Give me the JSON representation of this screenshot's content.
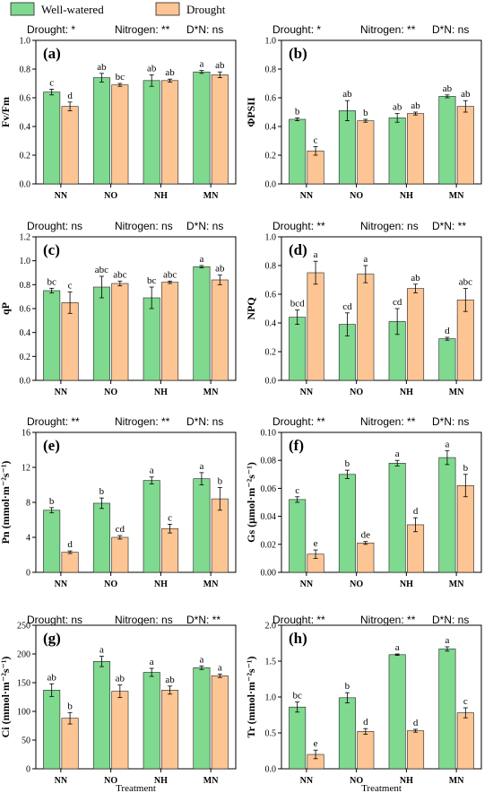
{
  "legend": {
    "items": [
      {
        "label": "Well-watered",
        "color": "#7fd98f"
      },
      {
        "label": "Drought",
        "color": "#fcc593"
      }
    ]
  },
  "colors": {
    "well_watered": "#7fd98f",
    "drought": "#fcc593",
    "edge": "#222222"
  },
  "chart_data": [
    {
      "type": "bar",
      "panel_label": "(a)",
      "ylabel": "Fv/Fm",
      "xlabel": "",
      "stats": [
        "Drought: *",
        "Nitrogen: **",
        "D*N: ns"
      ],
      "categories": [
        "NN",
        "NO",
        "NH",
        "MN"
      ],
      "ylim": [
        0,
        1.0
      ],
      "yticks": [
        "0.0",
        "0.2",
        "0.4",
        "0.6",
        "0.8",
        "1.0"
      ],
      "series": [
        {
          "name": "Well-watered",
          "values": [
            0.64,
            0.74,
            0.72,
            0.78
          ],
          "errors": [
            0.02,
            0.03,
            0.04,
            0.01
          ],
          "letters": [
            "c",
            "ab",
            "ab",
            "a"
          ]
        },
        {
          "name": "Drought",
          "values": [
            0.54,
            0.69,
            0.72,
            0.76
          ],
          "errors": [
            0.03,
            0.01,
            0.01,
            0.02
          ],
          "letters": [
            "d",
            "bc",
            "ab",
            "ab"
          ]
        }
      ]
    },
    {
      "type": "bar",
      "panel_label": "(b)",
      "ylabel": "ΦPSII",
      "xlabel": "",
      "stats": [
        "Drought: *",
        "Nitrogen: **",
        "D*N: ns"
      ],
      "categories": [
        "NN",
        "NO",
        "NH",
        "MN"
      ],
      "ylim": [
        0,
        1.0
      ],
      "yticks": [
        "0.0",
        "0.2",
        "0.4",
        "0.6",
        "0.8",
        "1.0"
      ],
      "series": [
        {
          "name": "Well-watered",
          "values": [
            0.45,
            0.51,
            0.46,
            0.61
          ],
          "errors": [
            0.01,
            0.07,
            0.03,
            0.01
          ],
          "letters": [
            "b",
            "ab",
            "ab",
            "ab"
          ]
        },
        {
          "name": "Drought",
          "values": [
            0.23,
            0.44,
            0.49,
            0.54
          ],
          "errors": [
            0.03,
            0.01,
            0.01,
            0.04
          ],
          "letters": [
            "c",
            "b",
            "ab",
            "ab"
          ]
        }
      ]
    },
    {
      "type": "bar",
      "panel_label": "(c)",
      "ylabel": "qP",
      "xlabel": "",
      "stats": [
        "Drought: ns",
        "Nitrogen: ns",
        "D*N: ns"
      ],
      "categories": [
        "NN",
        "NO",
        "NH",
        "MN"
      ],
      "ylim": [
        0,
        1.2
      ],
      "yticks": [
        "0.0",
        "0.2",
        "0.4",
        "0.6",
        "0.8",
        "1.0",
        "1.2"
      ],
      "series": [
        {
          "name": "Well-watered",
          "values": [
            0.75,
            0.78,
            0.69,
            0.95
          ],
          "errors": [
            0.02,
            0.09,
            0.09,
            0.01
          ],
          "letters": [
            "bc",
            "abc",
            "bc",
            "a"
          ]
        },
        {
          "name": "Drought",
          "values": [
            0.65,
            0.81,
            0.82,
            0.84
          ],
          "errors": [
            0.09,
            0.02,
            0.01,
            0.04
          ],
          "letters": [
            "c",
            "abc",
            "abc",
            "ab"
          ]
        }
      ]
    },
    {
      "type": "bar",
      "panel_label": "(d)",
      "ylabel": "NPQ",
      "xlabel": "",
      "stats": [
        "Drought: **",
        "Nitrogen: ns",
        "D*N: **"
      ],
      "categories": [
        "NN",
        "NO",
        "NH",
        "MN"
      ],
      "ylim": [
        0,
        1.0
      ],
      "yticks": [
        "0.0",
        "0.2",
        "0.4",
        "0.6",
        "0.8",
        "1.0"
      ],
      "series": [
        {
          "name": "Well-watered",
          "values": [
            0.44,
            0.39,
            0.41,
            0.29
          ],
          "errors": [
            0.05,
            0.08,
            0.09,
            0.01
          ],
          "letters": [
            "bcd",
            "cd",
            "cd",
            "d"
          ]
        },
        {
          "name": "Drought",
          "values": [
            0.75,
            0.74,
            0.64,
            0.56
          ],
          "errors": [
            0.08,
            0.06,
            0.03,
            0.08
          ],
          "letters": [
            "a",
            "a",
            "ab",
            "abc"
          ]
        }
      ]
    },
    {
      "type": "bar",
      "panel_label": "(e)",
      "ylabel": "Pn (mmol·m⁻²s⁻¹)",
      "xlabel": "",
      "stats": [
        "Drought: **",
        "Nitrogen: **",
        "D*N: ns"
      ],
      "categories": [
        "NN",
        "NO",
        "NH",
        "MN"
      ],
      "ylim": [
        0,
        16
      ],
      "yticks": [
        "0",
        "4",
        "8",
        "12",
        "16"
      ],
      "series": [
        {
          "name": "Well-watered",
          "values": [
            7.1,
            7.9,
            10.5,
            10.7
          ],
          "errors": [
            0.3,
            0.6,
            0.4,
            0.7
          ],
          "letters": [
            "b",
            "b",
            "a",
            "a"
          ]
        },
        {
          "name": "Drought",
          "values": [
            2.3,
            4.0,
            5.0,
            8.4
          ],
          "errors": [
            0.15,
            0.2,
            0.5,
            1.3
          ],
          "letters": [
            "d",
            "cd",
            "c",
            "b"
          ]
        }
      ]
    },
    {
      "type": "bar",
      "panel_label": "(f)",
      "ylabel": "Gs (μmol·m⁻²s⁻¹)",
      "xlabel": "",
      "stats": [
        "Drought: **",
        "Nitrogen: **",
        "D*N: ns"
      ],
      "categories": [
        "NN",
        "NO",
        "NH",
        "MN"
      ],
      "ylim": [
        0,
        0.1
      ],
      "yticks": [
        "0.00",
        "0.02",
        "0.04",
        "0.06",
        "0.08",
        "0.10"
      ],
      "series": [
        {
          "name": "Well-watered",
          "values": [
            0.052,
            0.07,
            0.078,
            0.082
          ],
          "errors": [
            0.002,
            0.003,
            0.002,
            0.005
          ],
          "letters": [
            "c",
            "b",
            "a",
            "a"
          ]
        },
        {
          "name": "Drought",
          "values": [
            0.013,
            0.021,
            0.034,
            0.062
          ],
          "errors": [
            0.003,
            0.001,
            0.005,
            0.008
          ],
          "letters": [
            "e",
            "de",
            "d",
            "b"
          ]
        }
      ]
    },
    {
      "type": "bar",
      "panel_label": "(g)",
      "ylabel": "Ci (mmol·m⁻²s⁻¹)",
      "xlabel": "Treatment",
      "stats": [
        "Drought: ns",
        "Nitrogen: ns",
        "D*N: **"
      ],
      "categories": [
        "NN",
        "NO",
        "NH",
        "MN"
      ],
      "ylim": [
        0,
        250
      ],
      "yticks": [
        "0",
        "50",
        "100",
        "150",
        "200",
        "250"
      ],
      "series": [
        {
          "name": "Well-watered",
          "values": [
            137,
            187,
            168,
            176
          ],
          "errors": [
            11,
            9,
            7,
            3
          ],
          "letters": [
            "ab",
            "a",
            "a",
            "a"
          ]
        },
        {
          "name": "Drought",
          "values": [
            88,
            135,
            137,
            162
          ],
          "errors": [
            10,
            11,
            7,
            3
          ],
          "letters": [
            "b",
            "ab",
            "ab",
            "a"
          ]
        }
      ]
    },
    {
      "type": "bar",
      "panel_label": "(h)",
      "ylabel": "Tr (mmol·m⁻²s⁻¹)",
      "xlabel": "Treatment",
      "stats": [
        "Drought: **",
        "Nitrogen: **",
        "D*N: ns"
      ],
      "categories": [
        "NN",
        "NO",
        "NH",
        "MN"
      ],
      "ylim": [
        0,
        2.0
      ],
      "yticks": [
        "0.0",
        "0.5",
        "1.0",
        "1.5",
        "2.0"
      ],
      "series": [
        {
          "name": "Well-watered",
          "values": [
            0.86,
            0.99,
            1.59,
            1.67
          ],
          "errors": [
            0.07,
            0.07,
            0.01,
            0.03
          ],
          "letters": [
            "bc",
            "b",
            "a",
            "a"
          ]
        },
        {
          "name": "Drought",
          "values": [
            0.2,
            0.52,
            0.53,
            0.78
          ],
          "errors": [
            0.06,
            0.04,
            0.02,
            0.07
          ],
          "letters": [
            "e",
            "d",
            "d",
            "c"
          ]
        }
      ]
    }
  ]
}
